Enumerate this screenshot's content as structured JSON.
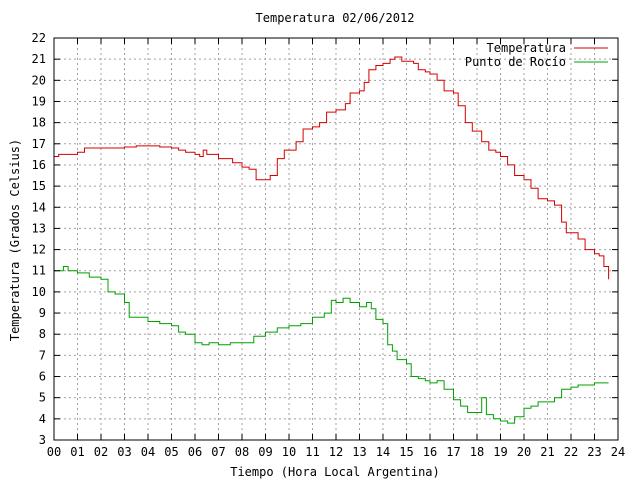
{
  "chart_data": {
    "type": "line",
    "title": "Temperatura 02/06/2012",
    "xlabel": "Tiempo (Hora Local Argentina)",
    "ylabel": "Temperatura (Grados Celsius)",
    "xlim": [
      0,
      24
    ],
    "ylim": [
      3,
      22
    ],
    "x_ticks": [
      "00",
      "01",
      "02",
      "03",
      "04",
      "05",
      "06",
      "07",
      "08",
      "09",
      "10",
      "11",
      "12",
      "13",
      "14",
      "15",
      "16",
      "17",
      "18",
      "19",
      "20",
      "21",
      "22",
      "23",
      "24"
    ],
    "y_ticks": [
      "3",
      "4",
      "5",
      "6",
      "7",
      "8",
      "9",
      "10",
      "11",
      "12",
      "13",
      "14",
      "15",
      "16",
      "17",
      "18",
      "19",
      "20",
      "21",
      "22"
    ],
    "grid": true,
    "legend_position": "top-right",
    "series": [
      {
        "name": "Temperatura",
        "color": "#d40000",
        "points": [
          [
            0.0,
            16.4
          ],
          [
            0.2,
            16.5
          ],
          [
            0.5,
            16.5
          ],
          [
            1.0,
            16.6
          ],
          [
            1.3,
            16.8
          ],
          [
            1.5,
            16.8
          ],
          [
            2.0,
            16.8
          ],
          [
            2.5,
            16.8
          ],
          [
            3.0,
            16.85
          ],
          [
            3.5,
            16.9
          ],
          [
            4.0,
            16.9
          ],
          [
            4.5,
            16.85
          ],
          [
            5.0,
            16.8
          ],
          [
            5.3,
            16.7
          ],
          [
            5.6,
            16.6
          ],
          [
            6.0,
            16.5
          ],
          [
            6.2,
            16.4
          ],
          [
            6.35,
            16.7
          ],
          [
            6.5,
            16.5
          ],
          [
            7.0,
            16.3
          ],
          [
            7.3,
            16.3
          ],
          [
            7.6,
            16.1
          ],
          [
            8.0,
            15.9
          ],
          [
            8.3,
            15.8
          ],
          [
            8.6,
            15.3
          ],
          [
            9.0,
            15.3
          ],
          [
            9.2,
            15.5
          ],
          [
            9.5,
            16.3
          ],
          [
            9.8,
            16.7
          ],
          [
            10.0,
            16.7
          ],
          [
            10.3,
            17.1
          ],
          [
            10.6,
            17.7
          ],
          [
            11.0,
            17.8
          ],
          [
            11.3,
            18.0
          ],
          [
            11.6,
            18.5
          ],
          [
            12.0,
            18.6
          ],
          [
            12.2,
            18.6
          ],
          [
            12.4,
            18.9
          ],
          [
            12.6,
            19.4
          ],
          [
            13.0,
            19.5
          ],
          [
            13.2,
            19.9
          ],
          [
            13.4,
            20.5
          ],
          [
            13.7,
            20.7
          ],
          [
            14.0,
            20.8
          ],
          [
            14.3,
            21.0
          ],
          [
            14.5,
            21.1
          ],
          [
            14.8,
            20.9
          ],
          [
            15.0,
            20.9
          ],
          [
            15.3,
            20.8
          ],
          [
            15.5,
            20.5
          ],
          [
            15.8,
            20.4
          ],
          [
            16.0,
            20.3
          ],
          [
            16.3,
            20.0
          ],
          [
            16.6,
            19.5
          ],
          [
            17.0,
            19.4
          ],
          [
            17.2,
            18.8
          ],
          [
            17.5,
            18.0
          ],
          [
            17.8,
            17.6
          ],
          [
            18.0,
            17.6
          ],
          [
            18.2,
            17.1
          ],
          [
            18.5,
            16.7
          ],
          [
            18.8,
            16.6
          ],
          [
            19.0,
            16.4
          ],
          [
            19.3,
            16.0
          ],
          [
            19.6,
            15.5
          ],
          [
            20.0,
            15.3
          ],
          [
            20.3,
            14.9
          ],
          [
            20.6,
            14.4
          ],
          [
            21.0,
            14.3
          ],
          [
            21.3,
            14.1
          ],
          [
            21.6,
            13.3
          ],
          [
            21.8,
            12.8
          ],
          [
            22.0,
            12.8
          ],
          [
            22.3,
            12.5
          ],
          [
            22.6,
            12.0
          ],
          [
            23.0,
            11.8
          ],
          [
            23.2,
            11.7
          ],
          [
            23.4,
            11.2
          ],
          [
            23.6,
            10.6
          ]
        ]
      },
      {
        "name": "Punto de Rocío",
        "color": "#00a000",
        "points": [
          [
            0.0,
            11.0
          ],
          [
            0.2,
            11.0
          ],
          [
            0.4,
            11.2
          ],
          [
            0.6,
            11.0
          ],
          [
            1.0,
            10.9
          ],
          [
            1.5,
            10.7
          ],
          [
            2.0,
            10.6
          ],
          [
            2.3,
            10.0
          ],
          [
            2.6,
            9.9
          ],
          [
            3.0,
            9.5
          ],
          [
            3.2,
            8.8
          ],
          [
            3.6,
            8.8
          ],
          [
            4.0,
            8.6
          ],
          [
            4.5,
            8.5
          ],
          [
            5.0,
            8.4
          ],
          [
            5.3,
            8.1
          ],
          [
            5.6,
            8.0
          ],
          [
            6.0,
            7.6
          ],
          [
            6.3,
            7.5
          ],
          [
            6.6,
            7.6
          ],
          [
            7.0,
            7.5
          ],
          [
            7.5,
            7.6
          ],
          [
            8.0,
            7.6
          ],
          [
            8.5,
            7.9
          ],
          [
            9.0,
            8.1
          ],
          [
            9.5,
            8.3
          ],
          [
            10.0,
            8.4
          ],
          [
            10.5,
            8.5
          ],
          [
            11.0,
            8.8
          ],
          [
            11.5,
            9.0
          ],
          [
            11.8,
            9.6
          ],
          [
            12.0,
            9.5
          ],
          [
            12.3,
            9.7
          ],
          [
            12.6,
            9.5
          ],
          [
            13.0,
            9.3
          ],
          [
            13.3,
            9.5
          ],
          [
            13.5,
            9.2
          ],
          [
            13.7,
            8.7
          ],
          [
            14.0,
            8.5
          ],
          [
            14.2,
            7.5
          ],
          [
            14.4,
            7.2
          ],
          [
            14.6,
            6.8
          ],
          [
            15.0,
            6.6
          ],
          [
            15.2,
            6.0
          ],
          [
            15.5,
            5.9
          ],
          [
            15.8,
            5.8
          ],
          [
            16.0,
            5.7
          ],
          [
            16.3,
            5.8
          ],
          [
            16.6,
            5.4
          ],
          [
            17.0,
            4.9
          ],
          [
            17.3,
            4.6
          ],
          [
            17.6,
            4.3
          ],
          [
            18.0,
            4.3
          ],
          [
            18.2,
            5.0
          ],
          [
            18.4,
            4.2
          ],
          [
            18.7,
            4.0
          ],
          [
            19.0,
            3.9
          ],
          [
            19.3,
            3.8
          ],
          [
            19.6,
            4.1
          ],
          [
            20.0,
            4.5
          ],
          [
            20.3,
            4.6
          ],
          [
            20.6,
            4.8
          ],
          [
            21.0,
            4.8
          ],
          [
            21.3,
            5.0
          ],
          [
            21.6,
            5.4
          ],
          [
            22.0,
            5.5
          ],
          [
            22.3,
            5.6
          ],
          [
            22.6,
            5.6
          ],
          [
            23.0,
            5.7
          ],
          [
            23.3,
            5.7
          ],
          [
            23.6,
            5.7
          ]
        ]
      }
    ]
  }
}
